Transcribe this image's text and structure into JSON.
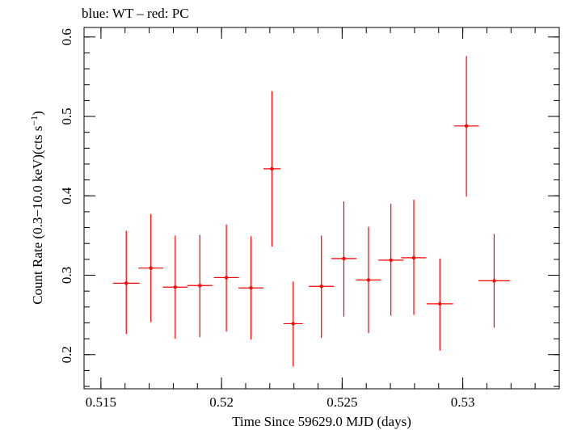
{
  "chart_data": {
    "type": "scatter",
    "title": "blue: WT – red: PC",
    "xlabel": "Time Since 59629.0 MJD (days)",
    "ylabel_parts": [
      "Count Rate (0.3−10.0 keV)(cts s",
      "−1",
      ")"
    ],
    "xlim": [
      0.5143,
      0.534
    ],
    "ylim": [
      0.157,
      0.612
    ],
    "xticks": [
      {
        "value": 0.515,
        "label": "0.515"
      },
      {
        "value": 0.52,
        "label": "0.52"
      },
      {
        "value": 0.525,
        "label": "0.525"
      },
      {
        "value": 0.53,
        "label": "0.53"
      }
    ],
    "yticks": [
      {
        "value": 0.2,
        "label": "0.2"
      },
      {
        "value": 0.3,
        "label": "0.3"
      },
      {
        "value": 0.4,
        "label": "0.4"
      },
      {
        "value": 0.5,
        "label": "0.5"
      },
      {
        "value": 0.6,
        "label": "0.6"
      }
    ],
    "series": [
      {
        "color": "#ff0000",
        "points": [
          {
            "x": 0.51605,
            "xerr": 0.00055,
            "y": 0.29,
            "ylo": 0.226,
            "yhi": 0.356
          },
          {
            "x": 0.51707,
            "xerr": 0.00052,
            "y": 0.309,
            "ylo": 0.241,
            "yhi": 0.377
          },
          {
            "x": 0.51808,
            "xerr": 0.00052,
            "y": 0.285,
            "ylo": 0.22,
            "yhi": 0.35
          },
          {
            "x": 0.5191,
            "xerr": 0.00052,
            "y": 0.287,
            "ylo": 0.222,
            "yhi": 0.351
          },
          {
            "x": 0.5202,
            "xerr": 0.00052,
            "y": 0.297,
            "ylo": 0.229,
            "yhi": 0.364
          },
          {
            "x": 0.52122,
            "xerr": 0.00052,
            "y": 0.284,
            "ylo": 0.219,
            "yhi": 0.349
          },
          {
            "x": 0.52209,
            "xerr": 0.00035,
            "y": 0.434,
            "ylo": 0.336,
            "yhi": 0.532
          },
          {
            "x": 0.52297,
            "xerr": 0.0004,
            "y": 0.239,
            "ylo": 0.185,
            "yhi": 0.292
          },
          {
            "x": 0.52414,
            "xerr": 0.00052,
            "y": 0.286,
            "ylo": 0.221,
            "yhi": 0.35
          },
          {
            "x": 0.52507,
            "xerr": 0.00052,
            "y": 0.321,
            "ylo": 0.248,
            "yhi": 0.393
          },
          {
            "x": 0.52609,
            "xerr": 0.00052,
            "y": 0.294,
            "ylo": 0.227,
            "yhi": 0.361
          },
          {
            "x": 0.52702,
            "xerr": 0.00052,
            "y": 0.319,
            "ylo": 0.249,
            "yhi": 0.39
          },
          {
            "x": 0.52797,
            "xerr": 0.00052,
            "y": 0.322,
            "ylo": 0.25,
            "yhi": 0.395
          },
          {
            "x": 0.52905,
            "xerr": 0.00055,
            "y": 0.264,
            "ylo": 0.205,
            "yhi": 0.321
          },
          {
            "x": 0.53015,
            "xerr": 0.00052,
            "y": 0.488,
            "ylo": 0.399,
            "yhi": 0.576
          },
          {
            "x": 0.5313,
            "xerr": 0.00065,
            "y": 0.293,
            "ylo": 0.234,
            "yhi": 0.352
          }
        ]
      }
    ],
    "grid": false
  }
}
